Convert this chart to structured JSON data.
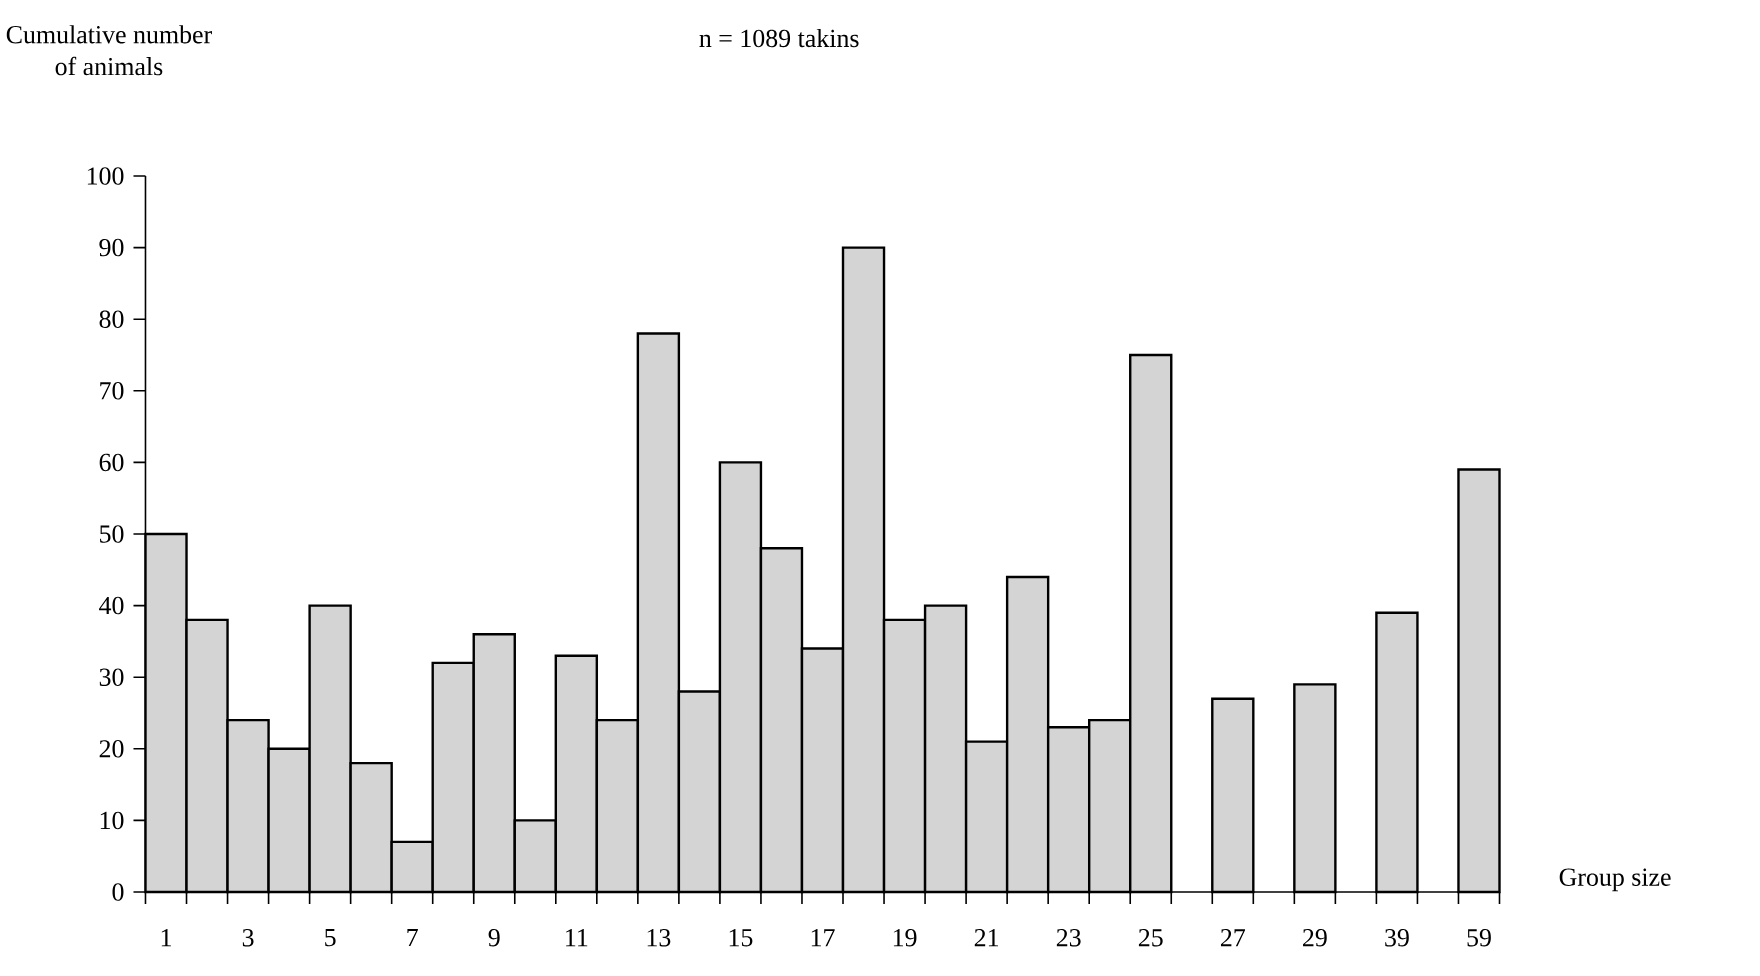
{
  "chart_data": {
    "type": "bar",
    "title": "n = 1089 takins",
    "ylabel": "Cumulative number\nof animals",
    "xlabel": "Group size",
    "categories": [
      "1",
      null,
      "3",
      null,
      "5",
      null,
      "7",
      null,
      "9",
      null,
      "11",
      null,
      "13",
      null,
      "15",
      null,
      "17",
      null,
      "19",
      null,
      "21",
      null,
      "23",
      null,
      "25",
      null,
      "27",
      null,
      "29",
      null,
      "39",
      null,
      "59"
    ],
    "values": [
      50,
      38,
      24,
      20,
      40,
      18,
      7,
      32,
      36,
      10,
      33,
      24,
      78,
      28,
      60,
      48,
      34,
      90,
      38,
      40,
      21,
      44,
      23,
      24,
      75,
      null,
      27,
      null,
      29,
      null,
      39,
      null,
      59
    ],
    "color": "#d4d4d4",
    "ylim": [
      0,
      100
    ],
    "yticks": [
      0,
      10,
      20,
      30,
      40,
      50,
      60,
      70,
      80,
      90,
      100
    ]
  }
}
